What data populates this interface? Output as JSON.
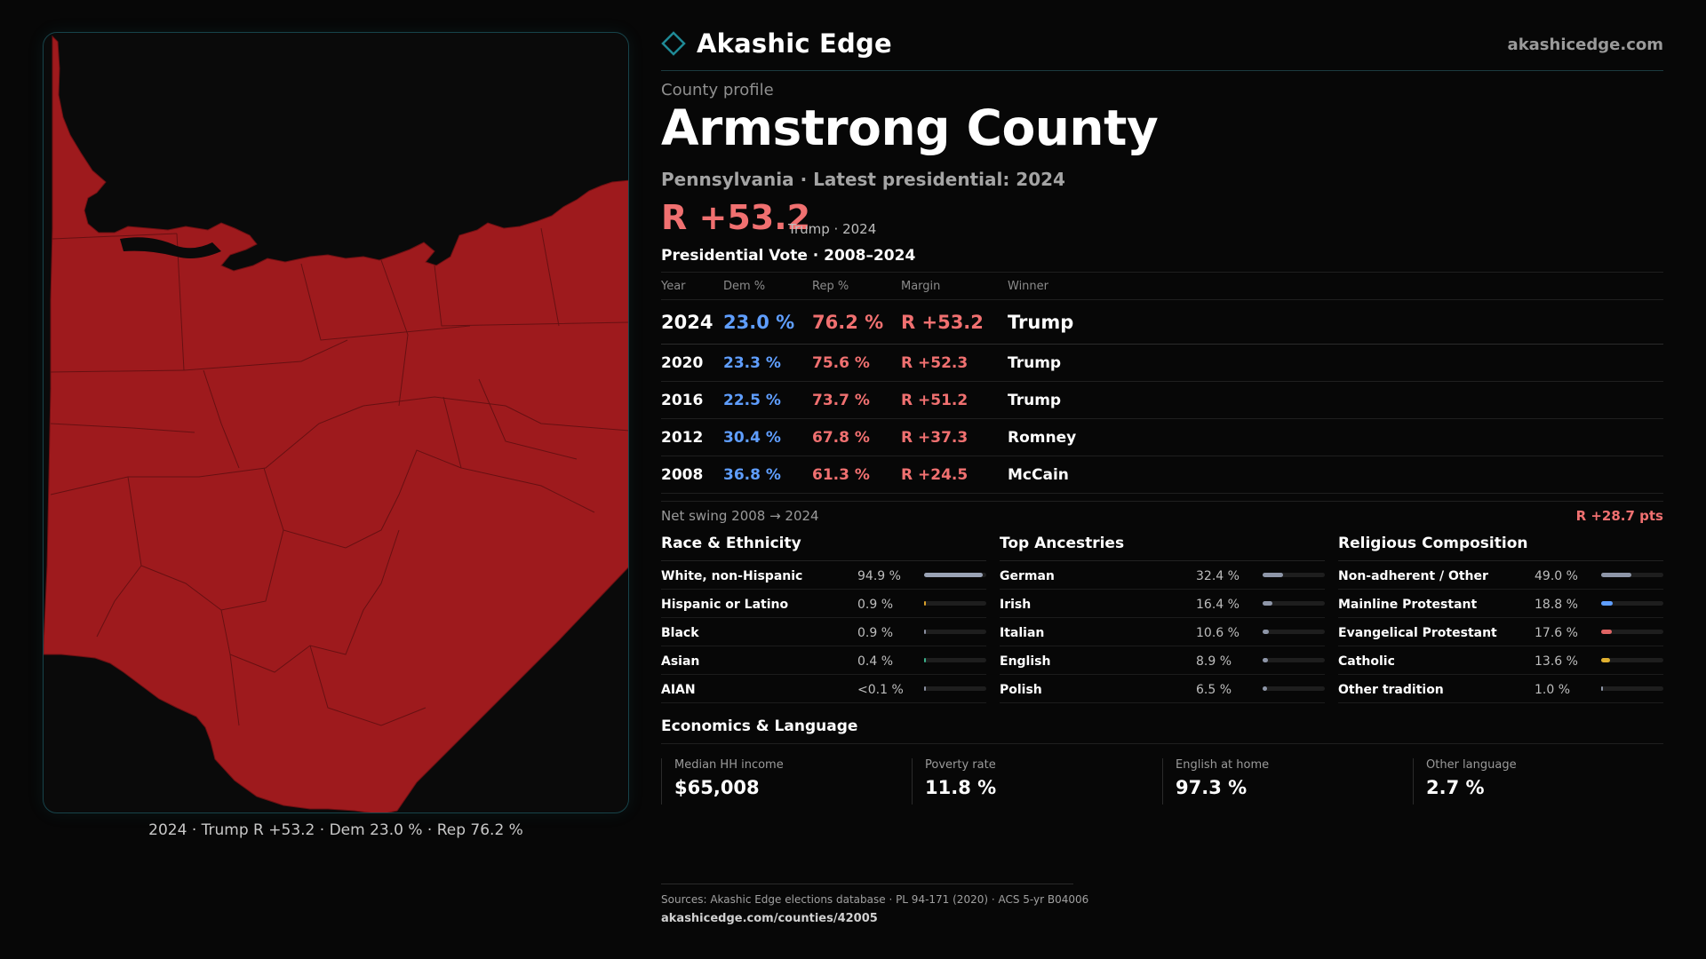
{
  "brand": {
    "name": "Akashic Edge",
    "url": "akashicedge.com",
    "logo_icon": "diamond-outline-icon",
    "accent": "#1f8a96"
  },
  "map": {
    "caption": "2024 · Trump R +53.2 · Dem 23.0 % · Rep 76.2 %",
    "fill_color": "#9e1a1d",
    "border_color": "#1b4a50"
  },
  "profile": {
    "eyebrow": "County profile",
    "county": "Armstrong County",
    "subtitle": "Pennsylvania · Latest presidential: 2024",
    "margin": "R +53.2",
    "margin_note": "Trump · 2024"
  },
  "vote_table": {
    "title": "Presidential Vote · 2008–2024",
    "headers": {
      "year": "Year",
      "dem": "Dem %",
      "rep": "Rep %",
      "margin": "Margin",
      "winner": "Winner"
    },
    "rows": [
      {
        "year": "2024",
        "dem": "23.0 %",
        "rep": "76.2 %",
        "margin": "R +53.2",
        "winner": "Trump"
      },
      {
        "year": "2020",
        "dem": "23.3 %",
        "rep": "75.6 %",
        "margin": "R +52.3",
        "winner": "Trump"
      },
      {
        "year": "2016",
        "dem": "22.5 %",
        "rep": "73.7 %",
        "margin": "R +51.2",
        "winner": "Trump"
      },
      {
        "year": "2012",
        "dem": "30.4 %",
        "rep": "67.8 %",
        "margin": "R +37.3",
        "winner": "Romney"
      },
      {
        "year": "2008",
        "dem": "36.8 %",
        "rep": "61.3 %",
        "margin": "R +24.5",
        "winner": "McCain"
      }
    ]
  },
  "swing": {
    "label": "Net swing 2008 → 2024",
    "value": "R +28.7 pts"
  },
  "race": {
    "title": "Race & Ethnicity",
    "rows": [
      {
        "label": "White, non-Hispanic",
        "pct": "94.9 %",
        "value": 94.9,
        "color": "#9aa3b5"
      },
      {
        "label": "Hispanic or Latino",
        "pct": "0.9 %",
        "value": 0.9,
        "color": "#d9a02a"
      },
      {
        "label": "Black",
        "pct": "0.9 %",
        "value": 0.9,
        "color": "#8a8fa0"
      },
      {
        "label": "Asian",
        "pct": "0.4 %",
        "value": 0.4,
        "color": "#3ab08a"
      },
      {
        "label": "AIAN",
        "pct": "<0.1 %",
        "value": 0.05,
        "color": "#8a8fa0"
      }
    ]
  },
  "ancestry": {
    "title": "Top Ancestries",
    "rows": [
      {
        "label": "German",
        "pct": "32.4 %",
        "value": 32.4,
        "color": "#8e96a8"
      },
      {
        "label": "Irish",
        "pct": "16.4 %",
        "value": 16.4,
        "color": "#8e96a8"
      },
      {
        "label": "Italian",
        "pct": "10.6 %",
        "value": 10.6,
        "color": "#8e96a8"
      },
      {
        "label": "English",
        "pct": "8.9 %",
        "value": 8.9,
        "color": "#8e96a8"
      },
      {
        "label": "Polish",
        "pct": "6.5 %",
        "value": 6.5,
        "color": "#8e96a8"
      }
    ]
  },
  "religion": {
    "title": "Religious Composition",
    "rows": [
      {
        "label": "Non-adherent / Other",
        "pct": "49.0 %",
        "value": 49.0,
        "color": "#8e96a8"
      },
      {
        "label": "Mainline Protestant",
        "pct": "18.8 %",
        "value": 18.8,
        "color": "#5f9eff"
      },
      {
        "label": "Evangelical Protestant",
        "pct": "17.6 %",
        "value": 17.6,
        "color": "#e06464"
      },
      {
        "label": "Catholic",
        "pct": "13.6 %",
        "value": 13.6,
        "color": "#e0b030"
      },
      {
        "label": "Other tradition",
        "pct": "1.0 %",
        "value": 1.0,
        "color": "#8e96a8"
      }
    ]
  },
  "economics": {
    "title": "Economics & Language",
    "cards": [
      {
        "label": "Median HH income",
        "value": "$65,008"
      },
      {
        "label": "Poverty rate",
        "value": "11.8 %"
      },
      {
        "label": "English at home",
        "value": "97.3 %"
      },
      {
        "label": "Other language",
        "value": "2.7 %"
      }
    ]
  },
  "sources": {
    "line1": "Sources: Akashic Edge elections database · PL 94-171 (2020) · ACS 5-yr B04006",
    "line2": "akashicedge.com/counties/42005"
  }
}
